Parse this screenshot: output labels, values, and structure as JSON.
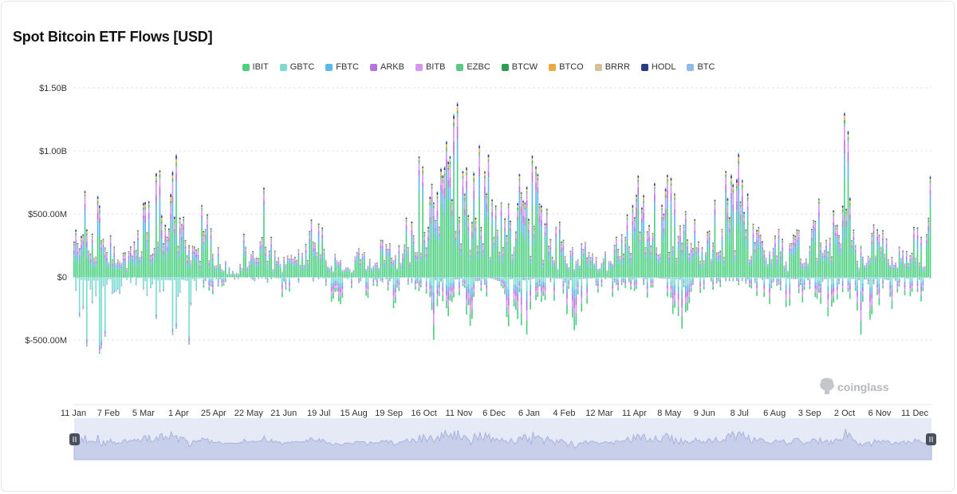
{
  "title": "Spot Bitcoin ETF Flows [USD]",
  "watermark": "coinglass",
  "colors": {
    "IBIT": "#4cd080",
    "GBTC": "#7ddccf",
    "FBTC": "#5eb7ea",
    "ARKB": "#b773e0",
    "BITB": "#d797ee",
    "EZBC": "#5cc885",
    "BTCW": "#2e9c52",
    "BTCO": "#f0a73e",
    "BRRR": "#d6c099",
    "HODL": "#2a3a86",
    "BTC": "#8dbaeb"
  },
  "chart_data": {
    "type": "bar",
    "stacked": true,
    "title": "Spot Bitcoin ETF Flows [USD]",
    "ylim": [
      -700000000,
      1500000000
    ],
    "y_ticks": [
      1500000000,
      1000000000,
      500000000,
      0,
      -500000000
    ],
    "y_tick_labels": [
      "$1.50B",
      "$1.00B",
      "$500.00M",
      "$0",
      "$-500.00M"
    ],
    "x_tick_labels": [
      "11 Jan",
      "7 Feb",
      "5 Mar",
      "1 Apr",
      "25 Apr",
      "22 May",
      "21 Jun",
      "19 Jul",
      "15 Aug",
      "19 Sep",
      "16 Oct",
      "11 Nov",
      "6 Dec",
      "6 Jan",
      "4 Feb",
      "12 Mar",
      "11 Apr",
      "8 May",
      "9 Jun",
      "8 Jul",
      "6 Aug",
      "3 Sep",
      "2 Oct",
      "6 Nov",
      "11 Dec"
    ],
    "legend": [
      "IBIT",
      "GBTC",
      "FBTC",
      "ARKB",
      "BITB",
      "EZBC",
      "BTCW",
      "BTCO",
      "BRRR",
      "HODL",
      "BTC"
    ],
    "legend_position": "top-center",
    "grid": true,
    "series_totals": [
      {
        "x": "11 Jan",
        "inflow": 700000000,
        "outflow": -100000000
      },
      {
        "x": "12 Jan",
        "inflow": 600000000,
        "outflow": -480000000
      },
      {
        "x": "16 Jan",
        "inflow": 750000000,
        "outflow": -590000000
      },
      {
        "x": "18 Jan",
        "inflow": 880000000,
        "outflow": -560000000
      },
      {
        "x": "22 Jan",
        "inflow": 500000000,
        "outflow": -640000000
      },
      {
        "x": "24 Jan",
        "inflow": 420000000,
        "outflow": -420000000
      },
      {
        "x": "29 Jan",
        "inflow": 390000000,
        "outflow": -250000000
      },
      {
        "x": "31 Jan",
        "inflow": 460000000,
        "outflow": -180000000
      },
      {
        "x": "7 Feb",
        "inflow": 330000000,
        "outflow": -90000000
      },
      {
        "x": "13 Feb",
        "inflow": 580000000,
        "outflow": -80000000
      },
      {
        "x": "20 Feb",
        "inflow": 700000000,
        "outflow": -120000000
      },
      {
        "x": "28 Feb",
        "inflow": 850000000,
        "outflow": -300000000
      },
      {
        "x": "5 Mar",
        "inflow": 1000000000,
        "outflow": -590000000
      },
      {
        "x": "8 Mar",
        "inflow": 780000000,
        "outflow": -500000000
      },
      {
        "x": "12 Mar",
        "inflow": 1140000000,
        "outflow": -560000000
      },
      {
        "x": "14 Mar",
        "inflow": 980000000,
        "outflow": -380000000
      },
      {
        "x": "19 Mar",
        "inflow": 320000000,
        "outflow": -640000000
      },
      {
        "x": "22 Mar",
        "inflow": 360000000,
        "outflow": -300000000
      },
      {
        "x": "27 Mar",
        "inflow": 520000000,
        "outflow": -200000000
      },
      {
        "x": "1 Apr",
        "inflow": 450000000,
        "outflow": -200000000
      },
      {
        "x": "8 Apr",
        "inflow": 300000000,
        "outflow": -120000000
      },
      {
        "x": "16 Apr",
        "inflow": 150000000,
        "outflow": -90000000
      },
      {
        "x": "25 Apr",
        "inflow": 80000000,
        "outflow": -60000000
      },
      {
        "x": "1 May",
        "inflow": 60000000,
        "outflow": -80000000
      },
      {
        "x": "7 May",
        "inflow": 360000000,
        "outflow": -60000000
      },
      {
        "x": "14 May",
        "inflow": 310000000,
        "outflow": -40000000
      },
      {
        "x": "22 May",
        "inflow": 290000000,
        "outflow": -30000000
      },
      {
        "x": "28 May",
        "inflow": 880000000,
        "outflow": -40000000
      },
      {
        "x": "6 Jun",
        "inflow": 360000000,
        "outflow": -80000000
      },
      {
        "x": "14 Jun",
        "inflow": 150000000,
        "outflow": -230000000
      },
      {
        "x": "21 Jun",
        "inflow": 160000000,
        "outflow": -150000000
      },
      {
        "x": "27 Jun",
        "inflow": 200000000,
        "outflow": -100000000
      },
      {
        "x": "5 Jul",
        "inflow": 180000000,
        "outflow": -70000000
      },
      {
        "x": "12 Jul",
        "inflow": 410000000,
        "outflow": -60000000
      },
      {
        "x": "16 Jul",
        "inflow": 570000000,
        "outflow": -100000000
      },
      {
        "x": "19 Jul",
        "inflow": 480000000,
        "outflow": -90000000
      },
      {
        "x": "25 Jul",
        "inflow": 250000000,
        "outflow": -150000000
      },
      {
        "x": "31 Jul",
        "inflow": 230000000,
        "outflow": -280000000
      },
      {
        "x": "6 Aug",
        "inflow": 150000000,
        "outflow": -220000000
      },
      {
        "x": "15 Aug",
        "inflow": 110000000,
        "outflow": -90000000
      },
      {
        "x": "23 Aug",
        "inflow": 200000000,
        "outflow": -110000000
      },
      {
        "x": "30 Aug",
        "inflow": 180000000,
        "outflow": -150000000
      },
      {
        "x": "9 Sep",
        "inflow": 160000000,
        "outflow": -200000000
      },
      {
        "x": "19 Sep",
        "inflow": 210000000,
        "outflow": -50000000
      },
      {
        "x": "27 Sep",
        "inflow": 370000000,
        "outflow": -80000000
      },
      {
        "x": "3 Oct",
        "inflow": 300000000,
        "outflow": -280000000
      },
      {
        "x": "10 Oct",
        "inflow": 250000000,
        "outflow": -140000000
      },
      {
        "x": "16 Oct",
        "inflow": 420000000,
        "outflow": -80000000
      },
      {
        "x": "22 Oct",
        "inflow": 450000000,
        "outflow": -120000000
      },
      {
        "x": "30 Oct",
        "inflow": 900000000,
        "outflow": -120000000
      },
      {
        "x": "6 Nov",
        "inflow": 1000000000,
        "outflow": -180000000
      },
      {
        "x": "8 Nov",
        "inflow": 720000000,
        "outflow": -560000000
      },
      {
        "x": "11 Nov",
        "inflow": 1100000000,
        "outflow": -230000000
      },
      {
        "x": "13 Nov",
        "inflow": 1360000000,
        "outflow": -330000000
      },
      {
        "x": "15 Nov",
        "inflow": 1100000000,
        "outflow": -420000000
      },
      {
        "x": "21 Nov",
        "inflow": 860000000,
        "outflow": -190000000
      },
      {
        "x": "26 Nov",
        "inflow": 880000000,
        "outflow": -430000000
      },
      {
        "x": "2 Dec",
        "inflow": 1000000000,
        "outflow": -700000000
      },
      {
        "x": "6 Dec",
        "inflow": 900000000,
        "outflow": -270000000
      },
      {
        "x": "12 Dec",
        "inflow": 740000000,
        "outflow": -210000000
      },
      {
        "x": "18 Dec",
        "inflow": 620000000,
        "outflow": -660000000
      },
      {
        "x": "24 Dec",
        "inflow": 580000000,
        "outflow": -480000000
      },
      {
        "x": "31 Dec",
        "inflow": 500000000,
        "outflow": -300000000
      },
      {
        "x": "6 Jan",
        "inflow": 900000000,
        "outflow": -480000000
      },
      {
        "x": "10 Jan",
        "inflow": 700000000,
        "outflow": -560000000
      },
      {
        "x": "17 Jan",
        "inflow": 980000000,
        "outflow": -250000000
      },
      {
        "x": "24 Jan",
        "inflow": 650000000,
        "outflow": -280000000
      },
      {
        "x": "30 Jan",
        "inflow": 560000000,
        "outflow": -160000000
      },
      {
        "x": "4 Feb",
        "inflow": 420000000,
        "outflow": -250000000
      },
      {
        "x": "10 Feb",
        "inflow": 330000000,
        "outflow": -300000000
      },
      {
        "x": "18 Feb",
        "inflow": 200000000,
        "outflow": -520000000
      },
      {
        "x": "26 Feb",
        "inflow": 250000000,
        "outflow": -400000000
      },
      {
        "x": "5 Mar",
        "inflow": 260000000,
        "outflow": -300000000
      },
      {
        "x": "12 Mar",
        "inflow": 220000000,
        "outflow": -250000000
      },
      {
        "x": "19 Mar",
        "inflow": 230000000,
        "outflow": -140000000
      },
      {
        "x": "28 Mar",
        "inflow": 300000000,
        "outflow": -120000000
      },
      {
        "x": "4 Apr",
        "inflow": 320000000,
        "outflow": -220000000
      },
      {
        "x": "11 Apr",
        "inflow": 300000000,
        "outflow": -110000000
      },
      {
        "x": "17 Apr",
        "inflow": 450000000,
        "outflow": -100000000
      },
      {
        "x": "22 Apr",
        "inflow": 920000000,
        "outflow": -120000000
      },
      {
        "x": "28 Apr",
        "inflow": 870000000,
        "outflow": -150000000
      },
      {
        "x": "2 May",
        "inflow": 980000000,
        "outflow": -200000000
      },
      {
        "x": "8 May",
        "inflow": 680000000,
        "outflow": -120000000
      },
      {
        "x": "15 May",
        "inflow": 700000000,
        "outflow": -280000000
      },
      {
        "x": "22 May",
        "inflow": 930000000,
        "outflow": -290000000
      },
      {
        "x": "29 May",
        "inflow": 650000000,
        "outflow": -360000000
      },
      {
        "x": "5 Jun",
        "inflow": 540000000,
        "outflow": -470000000
      },
      {
        "x": "9 Jun",
        "inflow": 700000000,
        "outflow": -260000000
      },
      {
        "x": "13 Jun",
        "inflow": 420000000,
        "outflow": -140000000
      },
      {
        "x": "20 Jun",
        "inflow": 490000000,
        "outflow": -130000000
      },
      {
        "x": "26 Jun",
        "inflow": 600000000,
        "outflow": -100000000
      },
      {
        "x": "2 Jul",
        "inflow": 500000000,
        "outflow": -120000000
      },
      {
        "x": "8 Jul",
        "inflow": 600000000,
        "outflow": -110000000
      },
      {
        "x": "10 Jul",
        "inflow": 1180000000,
        "outflow": -100000000
      },
      {
        "x": "14 Jul",
        "inflow": 1020000000,
        "outflow": -90000000
      },
      {
        "x": "17 Jul",
        "inflow": 820000000,
        "outflow": -100000000
      },
      {
        "x": "22 Jul",
        "inflow": 500000000,
        "outflow": -140000000
      },
      {
        "x": "28 Jul",
        "inflow": 440000000,
        "outflow": -200000000
      },
      {
        "x": "1 Aug",
        "inflow": 230000000,
        "outflow": -330000000
      },
      {
        "x": "6 Aug",
        "inflow": 350000000,
        "outflow": -200000000
      },
      {
        "x": "12 Aug",
        "inflow": 480000000,
        "outflow": -150000000
      },
      {
        "x": "18 Aug",
        "inflow": 210000000,
        "outflow": -290000000
      },
      {
        "x": "25 Aug",
        "inflow": 530000000,
        "outflow": -340000000
      },
      {
        "x": "3 Sep",
        "inflow": 320000000,
        "outflow": -230000000
      },
      {
        "x": "9 Sep",
        "inflow": 420000000,
        "outflow": -200000000
      },
      {
        "x": "15 Sep",
        "inflow": 700000000,
        "outflow": -200000000
      },
      {
        "x": "22 Sep",
        "inflow": 330000000,
        "outflow": -350000000
      },
      {
        "x": "29 Sep",
        "inflow": 500000000,
        "outflow": -280000000
      },
      {
        "x": "2 Oct",
        "inflow": 630000000,
        "outflow": -220000000
      },
      {
        "x": "6 Oct",
        "inflow": 1190000000,
        "outflow": -200000000
      },
      {
        "x": "10 Oct",
        "inflow": 720000000,
        "outflow": -310000000
      },
      {
        "x": "16 Oct",
        "inflow": 330000000,
        "outflow": -530000000
      },
      {
        "x": "22 Oct",
        "inflow": 270000000,
        "outflow": -380000000
      },
      {
        "x": "29 Oct",
        "inflow": 460000000,
        "outflow": -350000000
      },
      {
        "x": "6 Nov",
        "inflow": 480000000,
        "outflow": -200000000
      },
      {
        "x": "13 Nov",
        "inflow": 250000000,
        "outflow": -510000000
      },
      {
        "x": "20 Nov",
        "inflow": 260000000,
        "outflow": -160000000
      },
      {
        "x": "27 Nov",
        "inflow": 240000000,
        "outflow": -120000000
      },
      {
        "x": "4 Dec",
        "inflow": 230000000,
        "outflow": -300000000
      },
      {
        "x": "11 Dec",
        "inflow": 480000000,
        "outflow": -130000000
      },
      {
        "x": "17 Dec",
        "inflow": 230000000,
        "outflow": -220000000
      },
      {
        "x": "22 Dec",
        "inflow": 690000000,
        "outflow": -60000000
      }
    ]
  }
}
